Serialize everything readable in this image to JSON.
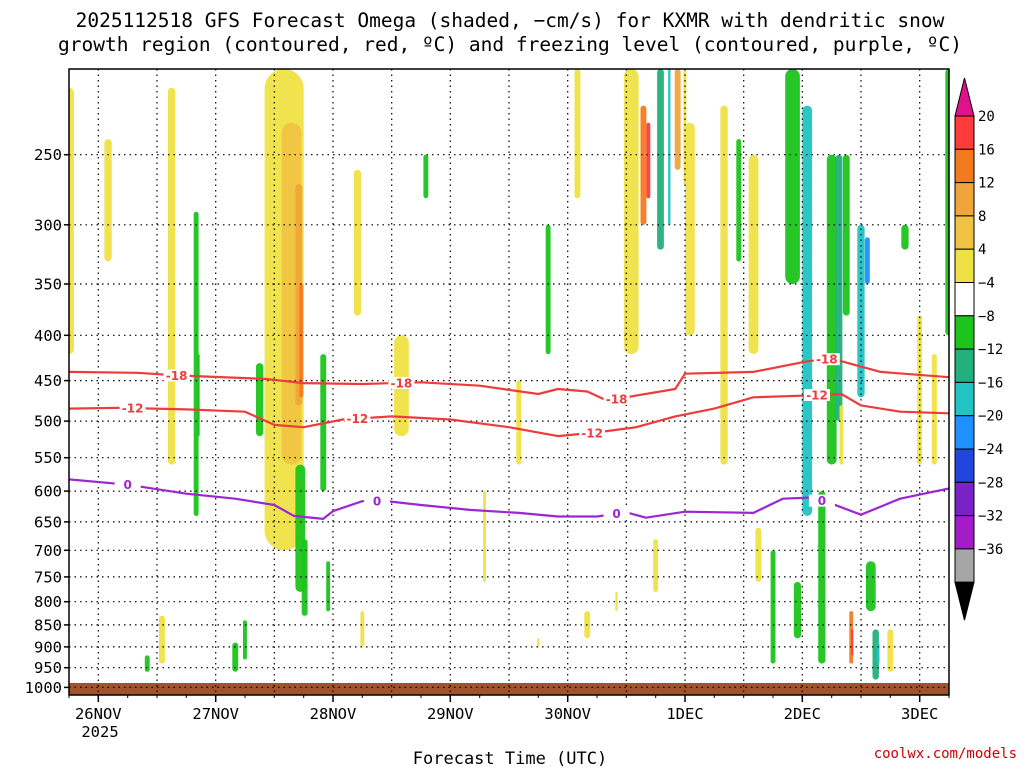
{
  "chart_data": {
    "type": "heatmap",
    "title": [
      "2025112518 GFS Forecast Omega (shaded, −cm/s) for KXMR with dendritic snow",
      "growth region (contoured, red, ºC) and freezing level (contoured, purple, ºC)"
    ],
    "xlabel": "Forecast Time (UTC)",
    "ylabel": "",
    "credit": "coolwx.com/models",
    "x_ticks": [
      {
        "hours": 6,
        "label": "26NOV"
      },
      {
        "hours": 30,
        "label": "27NOV"
      },
      {
        "hours": 54,
        "label": "28NOV"
      },
      {
        "hours": 78,
        "label": "29NOV"
      },
      {
        "hours": 102,
        "label": "30NOV"
      },
      {
        "hours": 126,
        "label": "1DEC"
      },
      {
        "hours": 150,
        "label": "2DEC"
      },
      {
        "hours": 174,
        "label": "3DEC"
      }
    ],
    "x_sublabel": "2025",
    "xlim_hours": [
      0,
      180
    ],
    "y_ticks": [
      250,
      300,
      350,
      400,
      450,
      500,
      550,
      600,
      650,
      700,
      750,
      800,
      850,
      900,
      950,
      1000
    ],
    "ylim_hPa": [
      200,
      1020
    ],
    "colorbar": {
      "labels": [
        "20",
        "16",
        "12",
        "8",
        "4",
        "−4",
        "−8",
        "−12",
        "−16",
        "−20",
        "−24",
        "−28",
        "−32",
        "−36"
      ],
      "colors": [
        "#ff3b3b",
        "#f47a1f",
        "#f0a53a",
        "#f0c442",
        "#efe145",
        "#ffffff",
        "#1cc41c",
        "#22b07c",
        "#22c3c3",
        "#1e90ff",
        "#2146de",
        "#7a22c8",
        "#a41cc8",
        "#a6a6a6"
      ],
      "over_color": "#e0118a",
      "under_color": "#000000"
    },
    "contours": [
      {
        "name": "-18 °C",
        "label": "-18",
        "color": "#ee3b3b",
        "points": [
          [
            0,
            440
          ],
          [
            14,
            441
          ],
          [
            22,
            444
          ],
          [
            40,
            448
          ],
          [
            48,
            453
          ],
          [
            60,
            454
          ],
          [
            72,
            452
          ],
          [
            84,
            456
          ],
          [
            96,
            466
          ],
          [
            100,
            460
          ],
          [
            106,
            463
          ],
          [
            110,
            474
          ],
          [
            124,
            460
          ],
          [
            126,
            442
          ],
          [
            140,
            440
          ],
          [
            151,
            428
          ],
          [
            156,
            425
          ],
          [
            166,
            440
          ],
          [
            180,
            446
          ]
        ],
        "labels_at_hours": [
          22,
          68,
          112,
          155
        ]
      },
      {
        "name": "-12 °C",
        "label": "-12",
        "color": "#ee3b3b",
        "points": [
          [
            0,
            484
          ],
          [
            10,
            483
          ],
          [
            24,
            485
          ],
          [
            36,
            488
          ],
          [
            42,
            505
          ],
          [
            48,
            508
          ],
          [
            56,
            498
          ],
          [
            66,
            494
          ],
          [
            78,
            498
          ],
          [
            90,
            508
          ],
          [
            100,
            520
          ],
          [
            108,
            515
          ],
          [
            116,
            508
          ],
          [
            124,
            494
          ],
          [
            132,
            484
          ],
          [
            140,
            470
          ],
          [
            150,
            468
          ],
          [
            158,
            466
          ],
          [
            162,
            480
          ],
          [
            170,
            488
          ],
          [
            180,
            490
          ]
        ],
        "labels_at_hours": [
          13,
          59,
          107,
          153
        ]
      },
      {
        "name": "0 °C freezing level",
        "label": "0",
        "color": "#9b27d3",
        "points": [
          [
            0,
            582
          ],
          [
            12,
            590
          ],
          [
            24,
            604
          ],
          [
            34,
            612
          ],
          [
            42,
            622
          ],
          [
            46,
            640
          ],
          [
            52,
            645
          ],
          [
            54,
            632
          ],
          [
            60,
            616
          ],
          [
            64,
            615
          ],
          [
            72,
            622
          ],
          [
            82,
            630
          ],
          [
            92,
            635
          ],
          [
            100,
            641
          ],
          [
            108,
            641
          ],
          [
            114,
            634
          ],
          [
            118,
            643
          ],
          [
            126,
            633
          ],
          [
            140,
            635
          ],
          [
            146,
            612
          ],
          [
            152,
            610
          ],
          [
            156,
            620
          ],
          [
            162,
            638
          ],
          [
            170,
            612
          ],
          [
            180,
            596
          ]
        ],
        "labels_at_hours": [
          12,
          63,
          112,
          154
        ]
      }
    ]
  }
}
